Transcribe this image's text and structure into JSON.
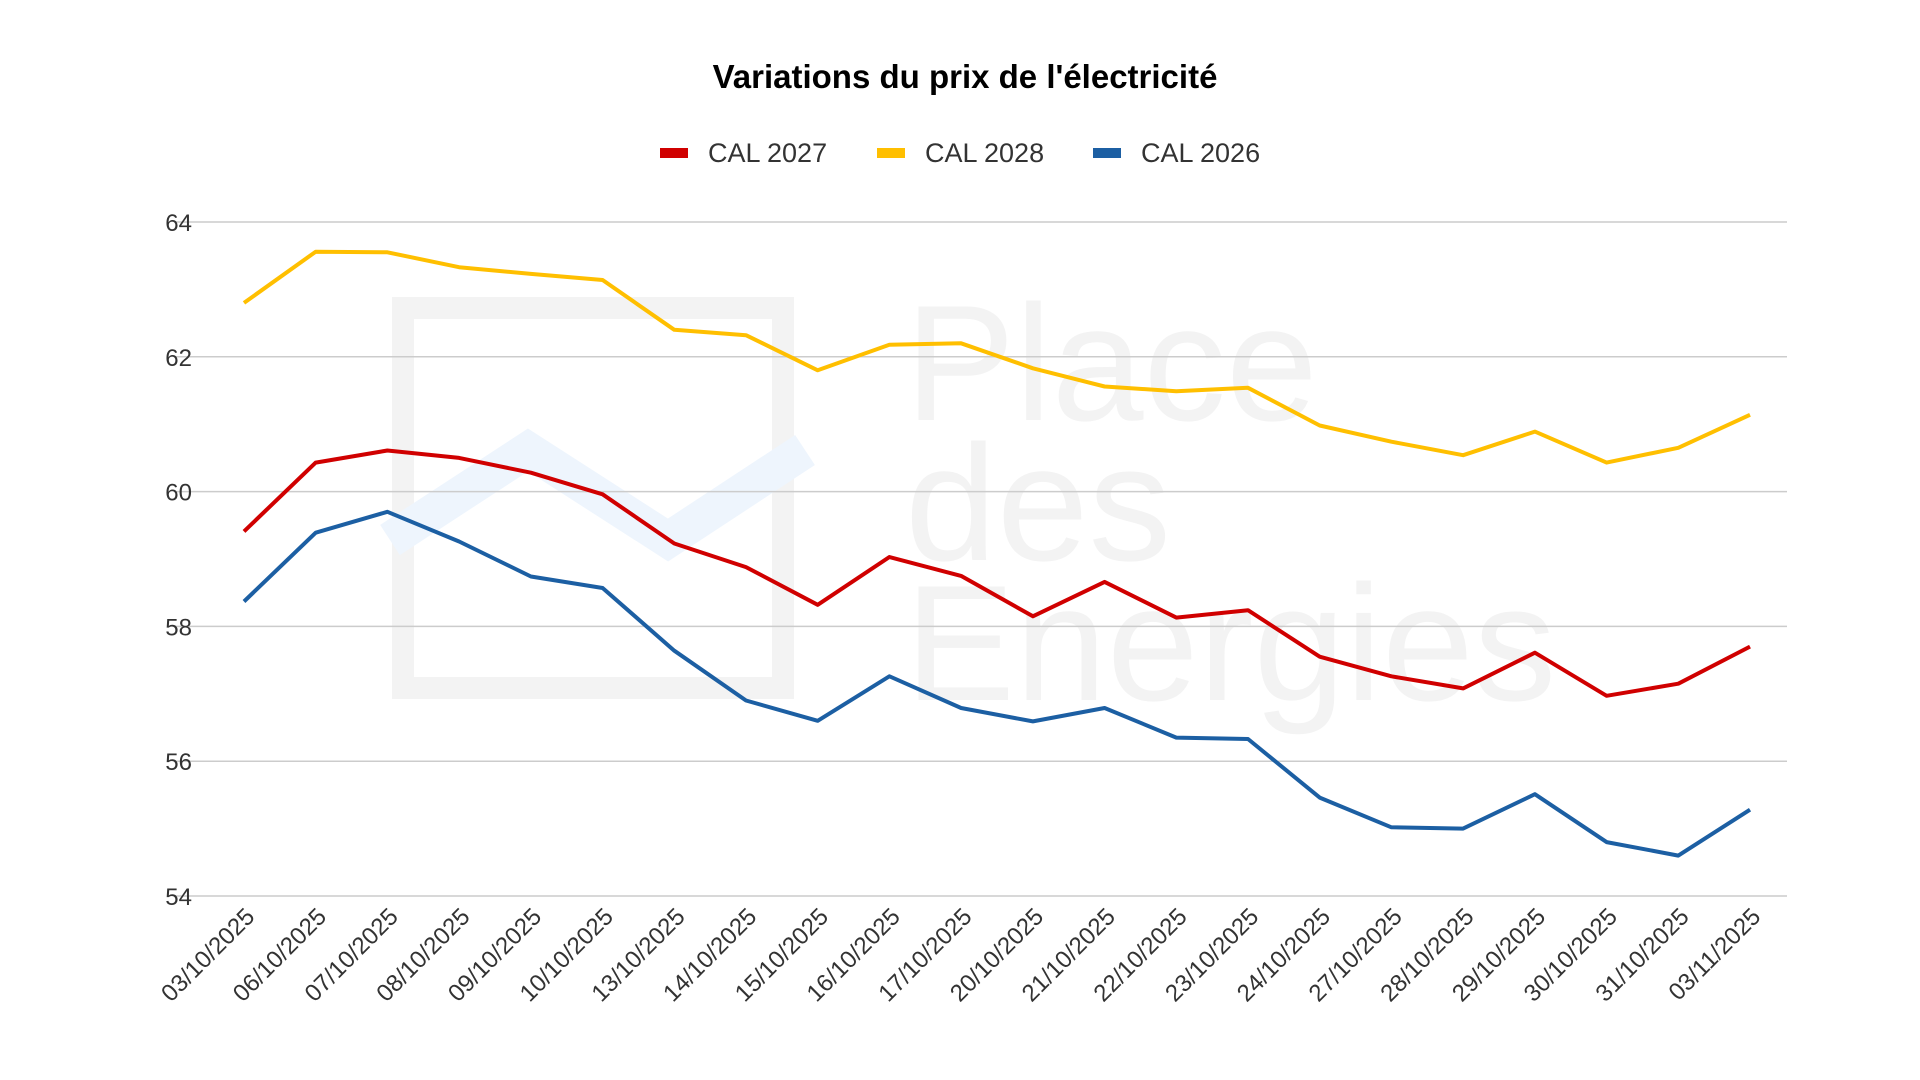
{
  "chart_data": {
    "type": "line",
    "title": "Variations du prix de l'électricité",
    "xlabel": "",
    "ylabel": "",
    "ylim": [
      54,
      64
    ],
    "yticks": [
      54,
      56,
      58,
      60,
      62,
      64
    ],
    "grid": true,
    "legend_position": "top",
    "x": [
      "03/10/2025",
      "06/10/2025",
      "07/10/2025",
      "08/10/2025",
      "09/10/2025",
      "10/10/2025",
      "13/10/2025",
      "14/10/2025",
      "15/10/2025",
      "16/10/2025",
      "17/10/2025",
      "20/10/2025",
      "21/10/2025",
      "22/10/2025",
      "23/10/2025",
      "24/10/2025",
      "27/10/2025",
      "28/10/2025",
      "29/10/2025",
      "30/10/2025",
      "31/10/2025",
      "03/11/2025"
    ],
    "series": [
      {
        "name": "CAL 2027",
        "color": "#d00000",
        "values": [
          59.41,
          60.43,
          60.61,
          60.5,
          60.28,
          59.96,
          59.23,
          58.88,
          58.32,
          59.03,
          58.75,
          58.15,
          58.66,
          58.13,
          58.24,
          57.55,
          57.26,
          57.08,
          57.61,
          56.97,
          57.15,
          57.7
        ]
      },
      {
        "name": "CAL 2028",
        "color": "#ffbf00",
        "values": [
          62.8,
          63.56,
          63.55,
          63.33,
          63.23,
          63.14,
          62.4,
          62.32,
          61.8,
          62.18,
          62.2,
          61.83,
          61.56,
          61.49,
          61.54,
          60.98,
          60.74,
          60.54,
          60.89,
          60.43,
          60.65,
          61.14
        ]
      },
      {
        "name": "CAL 2026",
        "color": "#1c5fa3",
        "values": [
          58.37,
          59.39,
          59.7,
          59.26,
          58.74,
          58.57,
          57.64,
          56.9,
          56.6,
          57.26,
          56.79,
          56.59,
          56.79,
          56.35,
          56.33,
          55.46,
          55.02,
          55.0,
          55.51,
          54.8,
          54.6,
          55.28
        ]
      }
    ]
  },
  "watermark": "Place des Energies"
}
